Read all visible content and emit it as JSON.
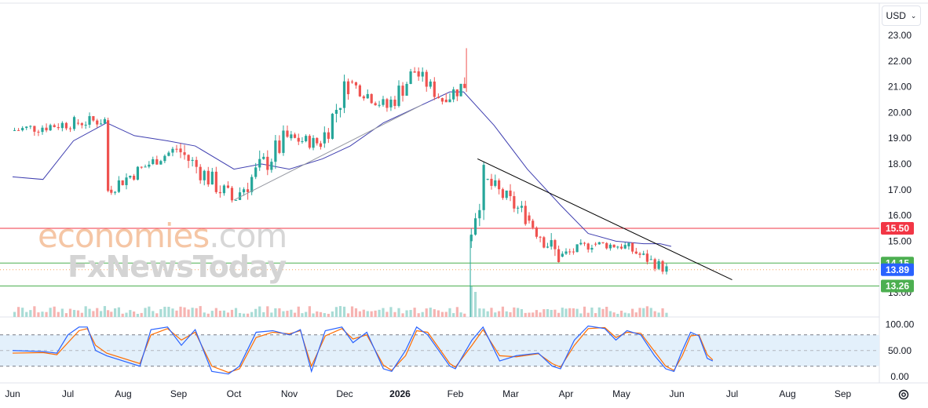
{
  "header": {
    "currency": "USD"
  },
  "watermark": {
    "brand_part1": "economies",
    "brand_part2": ".com",
    "brand_line2": "FxNewsToday",
    "colors": {
      "orange": "#f5c6a5",
      "grey": "#d7d7d7"
    }
  },
  "colors": {
    "up": "#26a69a",
    "down": "#ef5350",
    "ma": "#3f3fb0",
    "trendline": "#000000",
    "resistance": "#f23645",
    "support": "#4caf50",
    "current": "#2962ff",
    "stoch_k": "#2962ff",
    "stoch_d": "#ff6d00",
    "stoch_band": "#e3f0fb"
  },
  "chart_data": {
    "type": "candlestick",
    "price_axis": {
      "min": 13.0,
      "max": 23.0,
      "ticks": [
        "23.00",
        "22.00",
        "21.00",
        "20.00",
        "19.00",
        "18.00",
        "17.00",
        "16.00",
        "15.00",
        "14.00",
        "13.00"
      ]
    },
    "x_axis": {
      "labels": [
        "Jun",
        "Jul",
        "Aug",
        "Sep",
        "Oct",
        "Nov",
        "Dec",
        "2026",
        "Feb",
        "Mar",
        "Apr",
        "May",
        "Jun",
        "Jul",
        "Aug",
        "Sep"
      ],
      "bold_label": "2026"
    },
    "price_segments": [
      {
        "from_month": 0.0,
        "to_month": 1.15,
        "open": 19.3,
        "close": 19.6,
        "high": 19.9,
        "low": 18.5
      },
      {
        "from_month": 1.15,
        "to_month": 1.7,
        "open": 19.6,
        "close": 19.7,
        "high": 20.6,
        "low": 19.2
      },
      {
        "from_month": 1.7,
        "to_month": 1.75,
        "open": 19.7,
        "close": 17.0,
        "high": 19.8,
        "low": 16.9
      },
      {
        "from_month": 1.75,
        "to_month": 2.5,
        "open": 17.0,
        "close": 18.0,
        "high": 18.4,
        "low": 16.8
      },
      {
        "from_month": 2.5,
        "to_month": 3.0,
        "open": 18.0,
        "close": 18.6,
        "high": 19.0,
        "low": 17.7
      },
      {
        "from_month": 3.0,
        "to_month": 4.0,
        "open": 18.6,
        "close": 16.6,
        "high": 18.9,
        "low": 16.5
      },
      {
        "from_month": 4.0,
        "to_month": 5.0,
        "open": 16.6,
        "close": 19.0,
        "high": 19.5,
        "low": 16.6
      },
      {
        "from_month": 5.0,
        "to_month": 5.6,
        "open": 19.0,
        "close": 18.8,
        "high": 19.8,
        "low": 18.3
      },
      {
        "from_month": 5.6,
        "to_month": 6.1,
        "open": 18.8,
        "close": 21.2,
        "high": 21.5,
        "low": 18.6
      },
      {
        "from_month": 6.1,
        "to_month": 6.8,
        "open": 21.2,
        "close": 20.2,
        "high": 21.4,
        "low": 19.8
      },
      {
        "from_month": 6.8,
        "to_month": 7.3,
        "open": 20.2,
        "close": 21.6,
        "high": 22.2,
        "low": 19.7
      },
      {
        "from_month": 7.3,
        "to_month": 7.8,
        "open": 21.6,
        "close": 20.5,
        "high": 21.9,
        "low": 20.1
      },
      {
        "from_month": 7.8,
        "to_month": 8.2,
        "open": 20.5,
        "close": 21.1,
        "high": 22.5,
        "low": 20.4
      }
    ],
    "price_segments_after_gap": [
      {
        "from_month": 8.25,
        "to_month": 8.55,
        "open": 15.0,
        "close": 17.4,
        "high": 18.2,
        "low": 14.6
      },
      {
        "from_month": 8.55,
        "to_month": 9.3,
        "open": 17.4,
        "close": 16.0,
        "high": 17.7,
        "low": 15.6
      },
      {
        "from_month": 9.3,
        "to_month": 9.9,
        "open": 16.0,
        "close": 14.4,
        "high": 16.4,
        "low": 14.0
      },
      {
        "from_month": 9.9,
        "to_month": 10.5,
        "open": 14.4,
        "close": 14.9,
        "high": 15.3,
        "low": 14.1
      },
      {
        "from_month": 10.5,
        "to_month": 11.1,
        "open": 14.9,
        "close": 14.8,
        "high": 15.5,
        "low": 14.5
      },
      {
        "from_month": 11.1,
        "to_month": 11.5,
        "open": 14.8,
        "close": 14.3,
        "high": 15.2,
        "low": 13.9
      },
      {
        "from_month": 11.5,
        "to_month": 11.85,
        "open": 14.3,
        "close": 13.9,
        "high": 14.9,
        "low": 13.6
      }
    ],
    "moving_average": [
      [
        0,
        17.5
      ],
      [
        0.55,
        17.4
      ],
      [
        1.1,
        18.9
      ],
      [
        1.7,
        19.6
      ],
      [
        2.2,
        19.1
      ],
      [
        2.8,
        18.9
      ],
      [
        3.3,
        18.7
      ],
      [
        4.0,
        17.8
      ],
      [
        4.5,
        18.0
      ],
      [
        5.0,
        17.8
      ],
      [
        5.6,
        18.2
      ],
      [
        6.1,
        18.7
      ],
      [
        6.7,
        19.6
      ],
      [
        7.4,
        20.3
      ],
      [
        7.9,
        20.8
      ],
      [
        8.15,
        20.8
      ],
      [
        8.7,
        19.5
      ],
      [
        9.3,
        17.8
      ],
      [
        9.9,
        16.4
      ],
      [
        10.4,
        15.3
      ],
      [
        10.9,
        15.0
      ],
      [
        11.4,
        14.9
      ],
      [
        11.7,
        14.9
      ],
      [
        11.9,
        14.8
      ]
    ],
    "trendlines": [
      {
        "from": [
          4.0,
          16.6
        ],
        "to": [
          7.4,
          20.3
        ]
      },
      {
        "from": [
          8.4,
          18.2
        ],
        "to": [
          13.0,
          13.5
        ]
      }
    ],
    "horizontal_levels": [
      {
        "price": 15.5,
        "label": "15.50",
        "role": "resistance"
      },
      {
        "price": 14.15,
        "label": "14.15",
        "role": "support"
      },
      {
        "price": 13.89,
        "label": "13.89",
        "role": "current"
      },
      {
        "price": 13.26,
        "label": "13.26",
        "role": "support"
      }
    ],
    "stochastic": {
      "axis": {
        "min": 0,
        "max": 100,
        "ticks": [
          "100.00",
          "50.00",
          "0.00"
        ]
      },
      "upper_band": 80,
      "lower_band": 20,
      "k_points": [
        [
          0,
          50
        ],
        [
          0.55,
          48
        ],
        [
          0.8,
          45
        ],
        [
          1.0,
          80
        ],
        [
          1.2,
          95
        ],
        [
          1.35,
          95
        ],
        [
          1.5,
          50
        ],
        [
          1.7,
          40
        ],
        [
          2.3,
          20
        ],
        [
          2.5,
          90
        ],
        [
          2.8,
          95
        ],
        [
          3.05,
          60
        ],
        [
          3.3,
          90
        ],
        [
          3.6,
          10
        ],
        [
          3.9,
          5
        ],
        [
          4.1,
          20
        ],
        [
          4.4,
          85
        ],
        [
          4.7,
          88
        ],
        [
          5.0,
          80
        ],
        [
          5.2,
          90
        ],
        [
          5.4,
          10
        ],
        [
          5.65,
          88
        ],
        [
          5.95,
          95
        ],
        [
          6.15,
          65
        ],
        [
          6.4,
          85
        ],
        [
          6.7,
          15
        ],
        [
          6.85,
          10
        ],
        [
          7.1,
          50
        ],
        [
          7.3,
          95
        ],
        [
          7.5,
          80
        ],
        [
          7.9,
          20
        ],
        [
          8.0,
          15
        ],
        [
          8.3,
          70
        ],
        [
          8.5,
          95
        ],
        [
          8.8,
          30
        ],
        [
          9.1,
          40
        ],
        [
          9.5,
          45
        ],
        [
          9.75,
          20
        ],
        [
          9.9,
          15
        ],
        [
          10.15,
          70
        ],
        [
          10.4,
          97
        ],
        [
          10.7,
          92
        ],
        [
          10.9,
          70
        ],
        [
          11.1,
          88
        ],
        [
          11.35,
          80
        ],
        [
          11.6,
          40
        ],
        [
          11.8,
          15
        ],
        [
          11.95,
          10
        ],
        [
          12.1,
          50
        ],
        [
          12.25,
          85
        ],
        [
          12.4,
          78
        ],
        [
          12.55,
          35
        ],
        [
          12.65,
          30
        ]
      ],
      "d_points": [
        [
          0,
          45
        ],
        [
          0.55,
          46
        ],
        [
          0.8,
          42
        ],
        [
          1.0,
          65
        ],
        [
          1.2,
          88
        ],
        [
          1.35,
          92
        ],
        [
          1.5,
          60
        ],
        [
          1.7,
          45
        ],
        [
          2.3,
          25
        ],
        [
          2.5,
          80
        ],
        [
          2.8,
          92
        ],
        [
          3.05,
          70
        ],
        [
          3.3,
          85
        ],
        [
          3.6,
          20
        ],
        [
          3.9,
          8
        ],
        [
          4.1,
          15
        ],
        [
          4.4,
          75
        ],
        [
          4.7,
          85
        ],
        [
          5.0,
          82
        ],
        [
          5.2,
          88
        ],
        [
          5.4,
          20
        ],
        [
          5.65,
          78
        ],
        [
          5.95,
          92
        ],
        [
          6.15,
          72
        ],
        [
          6.4,
          80
        ],
        [
          6.7,
          22
        ],
        [
          6.85,
          12
        ],
        [
          7.1,
          40
        ],
        [
          7.3,
          88
        ],
        [
          7.5,
          85
        ],
        [
          7.9,
          25
        ],
        [
          8.0,
          18
        ],
        [
          8.3,
          60
        ],
        [
          8.5,
          90
        ],
        [
          8.8,
          40
        ],
        [
          9.1,
          38
        ],
        [
          9.5,
          44
        ],
        [
          9.75,
          25
        ],
        [
          9.9,
          18
        ],
        [
          10.15,
          60
        ],
        [
          10.4,
          92
        ],
        [
          10.7,
          94
        ],
        [
          10.9,
          75
        ],
        [
          11.1,
          85
        ],
        [
          11.35,
          83
        ],
        [
          11.6,
          48
        ],
        [
          11.8,
          20
        ],
        [
          11.95,
          12
        ],
        [
          12.1,
          40
        ],
        [
          12.25,
          78
        ],
        [
          12.4,
          80
        ],
        [
          12.55,
          42
        ],
        [
          12.65,
          32
        ]
      ]
    }
  }
}
